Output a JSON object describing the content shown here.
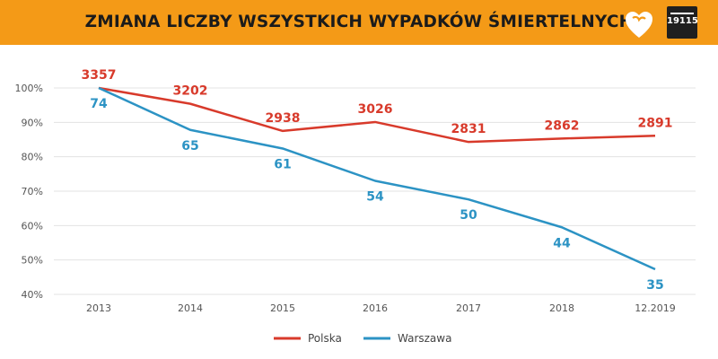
{
  "header": {
    "title": "ZMIANA LICZBY WSZYSTKICH WYPADKÓW ŚMIERTELNYCH",
    "badge": "19115",
    "logo_icon": "orange-heart-logo-icon",
    "background_color": "#f49a17"
  },
  "chart_data": {
    "type": "line",
    "title": "ZMIANA LICZBY WSZYSTKICH WYPADKÓW ŚMIERTELNYCH",
    "xlabel": "",
    "ylabel": "",
    "categories": [
      "2013",
      "2014",
      "2015",
      "2016",
      "2017",
      "2018",
      "12.2019"
    ],
    "y_ticks": [
      "40%",
      "50%",
      "60%",
      "70%",
      "80%",
      "90%",
      "100%"
    ],
    "y_tick_values": [
      40,
      50,
      60,
      70,
      80,
      90,
      100
    ],
    "ylim": [
      40,
      100
    ],
    "grid": true,
    "legend_position": "bottom-center",
    "series": [
      {
        "name": "Polska",
        "color": "#d83a2b",
        "values": [
          100,
          95.4,
          87.5,
          90.1,
          84.3,
          85.3,
          86.1
        ],
        "labels": [
          "3357",
          "3202",
          "2938",
          "3026",
          "2831",
          "2862",
          "2891"
        ]
      },
      {
        "name": "Warszawa",
        "color": "#2c93c4",
        "values": [
          100,
          87.8,
          82.4,
          73.0,
          67.6,
          59.5,
          47.3
        ],
        "labels": [
          "74",
          "65",
          "61",
          "54",
          "50",
          "44",
          "35"
        ]
      }
    ]
  }
}
